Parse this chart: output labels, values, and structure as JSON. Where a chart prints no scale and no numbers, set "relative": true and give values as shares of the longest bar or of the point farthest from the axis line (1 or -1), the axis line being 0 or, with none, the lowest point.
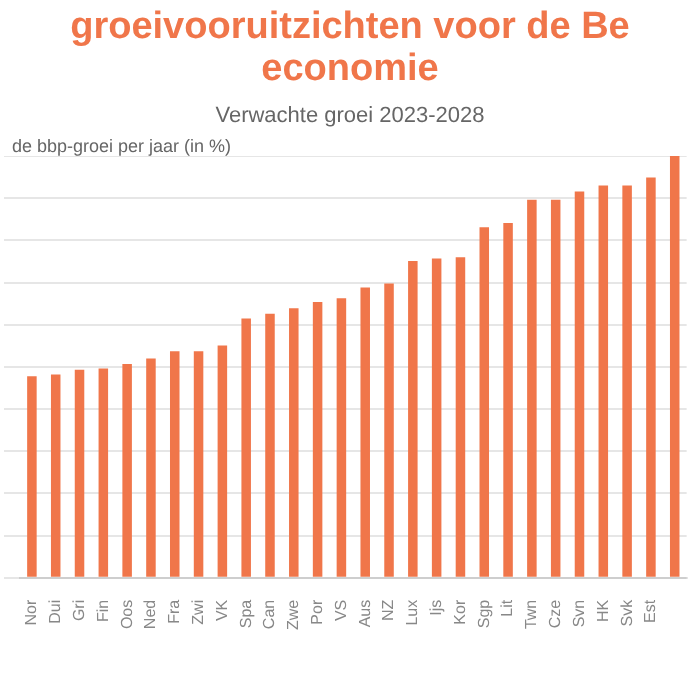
{
  "chart_data": {
    "type": "bar",
    "title": "groeivooruitzichten voor de Be economie",
    "subtitle": "Verwachte groei 2023-2028",
    "ylabel": "de bbp-groei per jaar (in %)",
    "categories": [
      "Nor",
      "Dui",
      "Gri",
      "Fin",
      "Oos",
      "Ned",
      "Fra",
      "Zwi",
      "VK",
      "Spa",
      "Can",
      "Zwe",
      "Por",
      "VS",
      "Aus",
      "NZ",
      "Lux",
      "Ijs",
      "Kor",
      "Sgp",
      "Lit",
      "Twn",
      "Cze",
      "Svn",
      "HK",
      "Svk",
      "Est",
      null
    ],
    "values": [
      0.478,
      0.482,
      0.493,
      0.496,
      0.507,
      0.52,
      0.537,
      0.537,
      0.551,
      0.615,
      0.626,
      0.639,
      0.654,
      0.663,
      0.688,
      0.698,
      0.751,
      0.757,
      0.76,
      0.831,
      0.841,
      0.896,
      0.896,
      0.916,
      0.93,
      0.93,
      0.949,
      1
    ],
    "color": "#f0764a",
    "relative": true,
    "grid": "y"
  }
}
